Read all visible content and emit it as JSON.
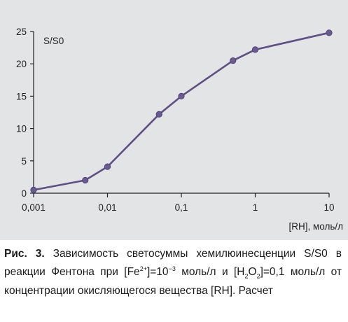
{
  "chart_data": {
    "type": "line",
    "xscale": "log",
    "x": [
      0.001,
      0.005,
      0.01,
      0.05,
      0.1,
      0.5,
      1,
      10
    ],
    "series": [
      {
        "values": [
          0.5,
          2.0,
          4.1,
          12.2,
          15.0,
          20.5,
          22.2,
          24.8
        ]
      }
    ],
    "ylabel": "S/S0",
    "xlabel": "[RH], моль/л",
    "xlim": [
      0.001,
      10
    ],
    "ylim": [
      0,
      25
    ],
    "x_ticks": [
      "0,001",
      "0,01",
      "0,1",
      "1",
      "10"
    ],
    "x_tick_values": [
      0.001,
      0.01,
      0.1,
      1,
      10
    ],
    "y_ticks": [
      "0",
      "5",
      "10",
      "15",
      "20",
      "25"
    ],
    "y_tick_values": [
      0,
      5,
      10,
      15,
      20,
      25
    ],
    "grid": false,
    "line_color": "#5f4f85",
    "marker_color": "#6a5a92"
  },
  "caption": {
    "label": "Рис. 3.",
    "text": "Зависимость светосуммы хемилюинесценции S/S0 в реакции Фентона при [Fe2+]=10−3 моль/л и [H2O2]=0,1 моль/л от концентрации окисляющегося вещества [RH]. Расчет",
    "part1": " Зависимость светосуммы хемилюинесцен­ции S/S0 в реакции Фентона при [Fe",
    "fe_sup": "2+",
    "part2": "]=10",
    "exp_sup": "−3",
    "part3": " моль/л и [H",
    "h_sub": "2",
    "part4": "O",
    "o_sub": "2",
    "part5": "]=0,1 моль/л от концентрации окисляющегося веще­ства [RH]. Расчет"
  }
}
